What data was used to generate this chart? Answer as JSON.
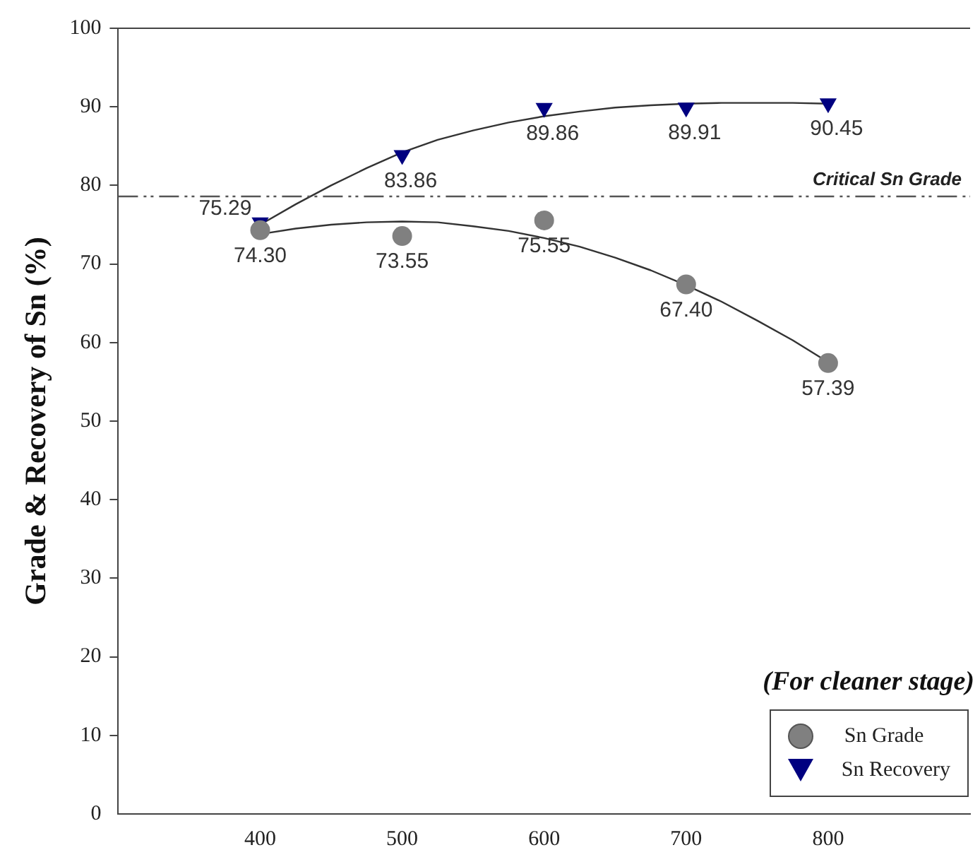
{
  "chart_data": {
    "type": "scatter",
    "ylabel": "Grade & Recovery of Sn (%)",
    "legend_title": "(For cleaner stage)",
    "legend": "bottom right",
    "grid": false,
    "x": [
      400,
      500,
      600,
      700,
      800
    ],
    "xlim": [
      300,
      900
    ],
    "xticks": [
      400,
      500,
      600,
      700,
      800
    ],
    "ylim": [
      0,
      100
    ],
    "yticks": [
      0,
      10,
      20,
      30,
      40,
      50,
      60,
      70,
      80,
      90,
      100
    ],
    "series": [
      {
        "name": "Sn Grade",
        "color": "#808080",
        "marker": "circle",
        "values": [
          74.3,
          73.55,
          75.55,
          67.4,
          57.39
        ],
        "value_labels": [
          "74.30",
          "73.55",
          "75.55",
          "67.40",
          "57.39"
        ]
      },
      {
        "name": "Sn Recovery",
        "color": "#000080",
        "marker": "triangle",
        "values": [
          75.29,
          83.86,
          89.86,
          89.91,
          90.45
        ],
        "value_labels": [
          "75.29",
          "83.86",
          "89.86",
          "89.91",
          "90.45"
        ]
      },
      {
        "type": "line",
        "color": "#333333",
        "marker": "none",
        "x": [
          400,
          425,
          450,
          475,
          500,
          525,
          550,
          575,
          600,
          625,
          650,
          675,
          700,
          725,
          750,
          775,
          800
        ],
        "values": [
          73.8,
          74.5,
          75.0,
          75.3,
          75.4,
          75.3,
          74.8,
          74.2,
          73.3,
          72.2,
          70.8,
          69.2,
          67.3,
          65.2,
          62.8,
          60.3,
          57.5
        ]
      },
      {
        "type": "line",
        "color": "#333333",
        "marker": "none",
        "x": [
          400,
          425,
          450,
          475,
          500,
          525,
          550,
          575,
          600,
          625,
          650,
          675,
          700,
          725,
          750,
          775,
          800
        ],
        "values": [
          75.0,
          77.6,
          80.0,
          82.2,
          84.2,
          85.8,
          87.0,
          88.0,
          88.8,
          89.4,
          89.9,
          90.2,
          90.4,
          90.5,
          90.5,
          90.5,
          90.4
        ]
      }
    ],
    "ref_lines": [
      {
        "axis": "y",
        "value": 78.6,
        "label": "Critical Sn Grade",
        "color": "#555555",
        "line_style": "dashed"
      }
    ]
  }
}
